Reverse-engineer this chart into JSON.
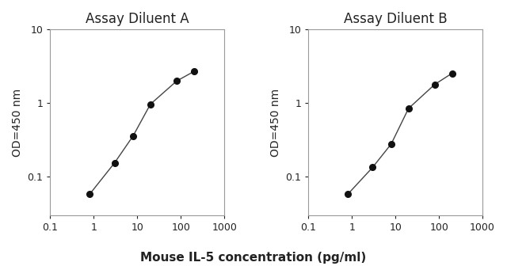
{
  "panel_A": {
    "title": "Assay Diluent A",
    "x": [
      0.8,
      3.0,
      8,
      20,
      80,
      200
    ],
    "y": [
      0.058,
      0.155,
      0.36,
      0.97,
      2.0,
      2.7
    ],
    "xlim": [
      0.1,
      1000
    ],
    "ylim": [
      0.03,
      10
    ]
  },
  "panel_B": {
    "title": "Assay Diluent B",
    "x": [
      0.8,
      3.0,
      8,
      20,
      80,
      200
    ],
    "y": [
      0.058,
      0.135,
      0.28,
      0.85,
      1.8,
      2.55
    ],
    "xlim": [
      0.1,
      1000
    ],
    "ylim": [
      0.03,
      10
    ]
  },
  "xlabel": "Mouse IL-5 concentration (pg/ml)",
  "ylabel": "OD=450 nm",
  "line_color": "#444444",
  "marker_color": "#111111",
  "marker_size": 5.5,
  "line_width": 1.0,
  "title_fontsize": 12,
  "axis_label_fontsize": 10,
  "tick_label_fontsize": 9,
  "text_color": "#222222",
  "spine_color": "#999999",
  "background_color": "#ffffff",
  "xticks": [
    0.1,
    1,
    10,
    100,
    1000
  ],
  "yticks": [
    0.1,
    1,
    10
  ],
  "xtick_labels": [
    "0.1",
    "1",
    "10",
    "100",
    "1000"
  ],
  "ytick_labels": [
    "0.1",
    "1",
    "10"
  ]
}
